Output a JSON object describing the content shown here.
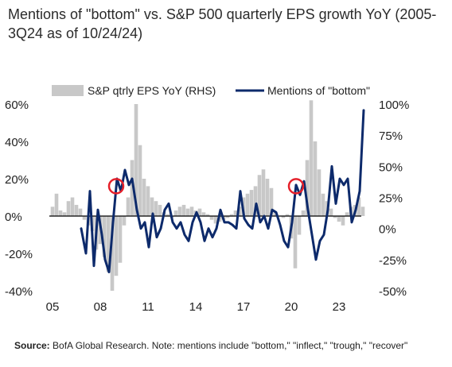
{
  "title": "Mentions of \"bottom\" vs. S&P 500 quarterly EPS growth YoY (2005-3Q24 as of 10/24/24)",
  "source_label": "Source:",
  "source_text": " BofA Global Research. Note: mentions include \"bottom,\" \"inflect,\" \"trough,\" \"recover\"",
  "colors": {
    "bar": "#c8c8c8",
    "line": "#0d2a6b",
    "circle": "#e5202a",
    "axis": "#000000"
  },
  "chart_data": {
    "type": "bar+line",
    "legend_position": "top",
    "x_tick_labels": [
      "05",
      "08",
      "11",
      "14",
      "17",
      "20",
      "23"
    ],
    "x_tick_years": [
      2005,
      2008,
      2011,
      2014,
      2017,
      2020,
      2023
    ],
    "x_range": [
      2004.8,
      2024.8
    ],
    "y_left": {
      "ticks": [
        "60%",
        "40%",
        "20%",
        "0%",
        "-20%",
        "-40%"
      ],
      "values": [
        60,
        40,
        20,
        0,
        -20,
        -40
      ],
      "range": [
        -40,
        60
      ]
    },
    "y_right": {
      "ticks": [
        "100%",
        "75%",
        "50%",
        "25%",
        "0%",
        "-25%",
        "-50%"
      ],
      "values": [
        100,
        75,
        50,
        25,
        0,
        -25,
        -50
      ],
      "range": [
        -50,
        100
      ]
    },
    "series": [
      {
        "name": "S&P qtrly EPS YoY (RHS)",
        "type": "bar",
        "axis": "left",
        "x": [
          2005.0,
          2005.25,
          2005.5,
          2005.75,
          2006.0,
          2006.25,
          2006.5,
          2006.75,
          2007.0,
          2007.25,
          2007.5,
          2007.75,
          2008.0,
          2008.25,
          2008.5,
          2008.75,
          2009.0,
          2009.25,
          2009.5,
          2009.75,
          2010.0,
          2010.25,
          2010.5,
          2010.75,
          2011.0,
          2011.25,
          2011.5,
          2011.75,
          2012.0,
          2012.25,
          2012.5,
          2012.75,
          2013.0,
          2013.25,
          2013.5,
          2013.75,
          2014.0,
          2014.25,
          2014.5,
          2014.75,
          2015.0,
          2015.25,
          2015.5,
          2015.75,
          2016.0,
          2016.25,
          2016.5,
          2016.75,
          2017.0,
          2017.25,
          2017.5,
          2017.75,
          2018.0,
          2018.25,
          2018.5,
          2018.75,
          2019.0,
          2019.25,
          2019.5,
          2019.75,
          2020.0,
          2020.25,
          2020.5,
          2020.75,
          2021.0,
          2021.25,
          2021.5,
          2021.75,
          2022.0,
          2022.25,
          2022.5,
          2022.75,
          2023.0,
          2023.25,
          2023.5,
          2023.75,
          2024.0,
          2024.25,
          2024.5
        ],
        "values": [
          5,
          12,
          3,
          2,
          8,
          10,
          6,
          4,
          -2,
          -5,
          -8,
          -18,
          -15,
          -22,
          -30,
          -40,
          -32,
          -25,
          -5,
          10,
          30,
          60,
          38,
          20,
          16,
          10,
          8,
          6,
          2,
          1,
          -1,
          3,
          5,
          6,
          4,
          5,
          3,
          4,
          2,
          1,
          -2,
          -4,
          -3,
          -2,
          -1,
          1,
          3,
          5,
          10,
          12,
          14,
          16,
          22,
          25,
          20,
          15,
          2,
          0,
          -1,
          1,
          -12,
          -28,
          -10,
          3,
          30,
          62,
          40,
          25,
          12,
          8,
          4,
          -1,
          -3,
          -5,
          2,
          5,
          6,
          10,
          5
        ]
      },
      {
        "name": "Mentions of \"bottom\"",
        "type": "line",
        "axis": "right",
        "x": [
          2006.8,
          2007.1,
          2007.35,
          2007.6,
          2007.85,
          2008.1,
          2008.3,
          2008.55,
          2008.8,
          2009.05,
          2009.3,
          2009.55,
          2009.8,
          2010.0,
          2010.3,
          2010.55,
          2010.8,
          2011.05,
          2011.3,
          2011.55,
          2011.8,
          2012.05,
          2012.3,
          2012.55,
          2012.8,
          2013.05,
          2013.3,
          2013.55,
          2013.8,
          2014.05,
          2014.3,
          2014.55,
          2014.8,
          2015.05,
          2015.3,
          2015.55,
          2015.8,
          2016.05,
          2016.3,
          2016.55,
          2016.8,
          2017.05,
          2017.3,
          2017.55,
          2017.8,
          2018.05,
          2018.3,
          2018.55,
          2018.8,
          2019.05,
          2019.3,
          2019.55,
          2019.8,
          2020.05,
          2020.3,
          2020.55,
          2020.8,
          2021.05,
          2021.3,
          2021.55,
          2021.8,
          2022.05,
          2022.3,
          2022.55,
          2022.8,
          2023.05,
          2023.3,
          2023.55,
          2023.8,
          2024.05,
          2024.3,
          2024.55
        ],
        "values": [
          0,
          -20,
          30,
          -30,
          15,
          -5,
          -25,
          -35,
          5,
          40,
          30,
          47,
          35,
          40,
          15,
          0,
          5,
          -15,
          12,
          -7,
          0,
          15,
          20,
          5,
          0,
          5,
          -5,
          -10,
          5,
          13,
          5,
          -10,
          0,
          -7,
          0,
          15,
          5,
          5,
          3,
          0,
          30,
          8,
          3,
          0,
          20,
          5,
          10,
          0,
          15,
          13,
          3,
          -10,
          -15,
          5,
          35,
          27,
          38,
          15,
          -5,
          -25,
          -10,
          -5,
          15,
          50,
          20,
          40,
          35,
          40,
          5,
          15,
          30,
          95
        ]
      }
    ],
    "highlight_circles": [
      {
        "x": 2009.0,
        "y_right": 34
      },
      {
        "x": 2020.3,
        "y_right": 34
      }
    ]
  }
}
